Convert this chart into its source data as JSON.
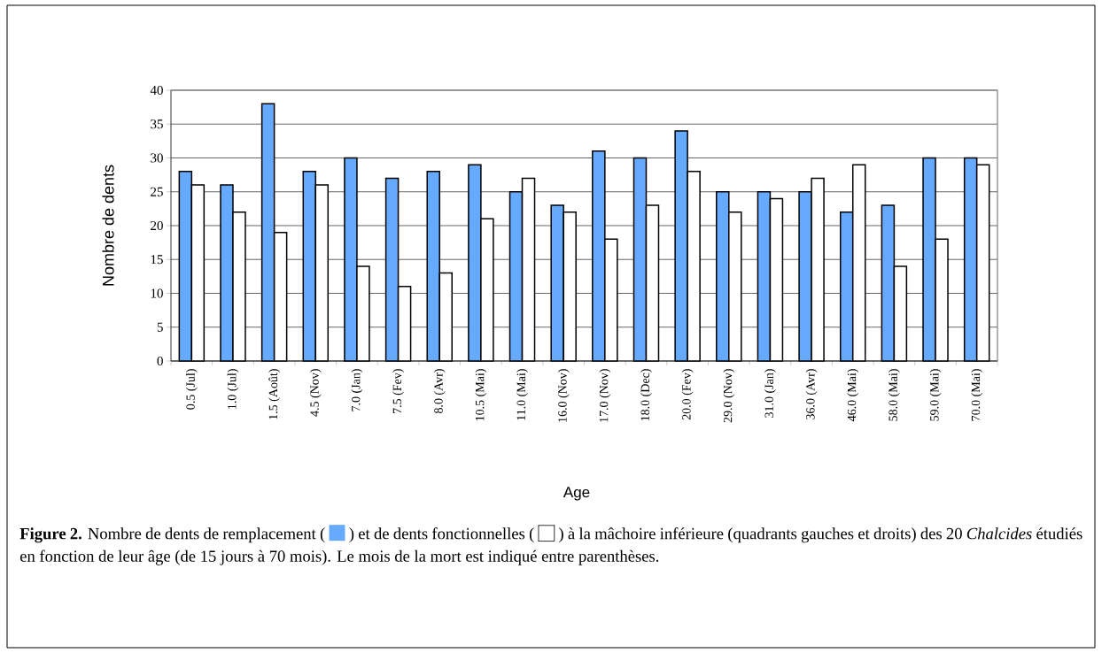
{
  "chart_data": {
    "type": "bar",
    "xlabel": "Age",
    "ylabel": "Nombre de dents",
    "categories": [
      "0.5 (Jul)",
      "1.0 (Jul)",
      "1.5 (Août)",
      "4.5 (Nov)",
      "7.0 (Jan)",
      "7.5 (Fev)",
      "8.0 (Avr)",
      "10.5 (Mai)",
      "11.0 (Mai)",
      "16.0 (Nov)",
      "17.0 (Nov)",
      "18.0 (Dec)",
      "20.0 (Fev)",
      "29.0 (Nov)",
      "31.0 (Jan)",
      "36.0 (Avr)",
      "46.0 (Mai)",
      "58.0 (Mai)",
      "59.0 (Mai)",
      "70.0 (Mai)"
    ],
    "series": [
      {
        "color": "#66aaff",
        "values": [
          28,
          26,
          38,
          28,
          30,
          27,
          28,
          29,
          25,
          23,
          31,
          30,
          34,
          25,
          25,
          25,
          22,
          23,
          30,
          30
        ]
      },
      {
        "color": "#ffffff",
        "values": [
          26,
          22,
          19,
          26,
          14,
          11,
          13,
          21,
          27,
          22,
          18,
          23,
          28,
          22,
          24,
          27,
          29,
          14,
          18,
          29
        ]
      }
    ],
    "ylim": [
      0,
      40
    ],
    "yticks": [
      0,
      5,
      10,
      15,
      20,
      25,
      30,
      35,
      40
    ],
    "grid": "y",
    "annotations": [
      "**Figure 2.** Nombre de dents de remplacement (",
      ") et de dents fonctionnelles (",
      ") à la mâchoire inférieure (quadrants gauches et droits) des 20 *Chalcides* étudiés en fonction de leur âge (de 15 jours à 70 mois). Le mois de la mort est indiqué entre parenthèses."
    ]
  }
}
